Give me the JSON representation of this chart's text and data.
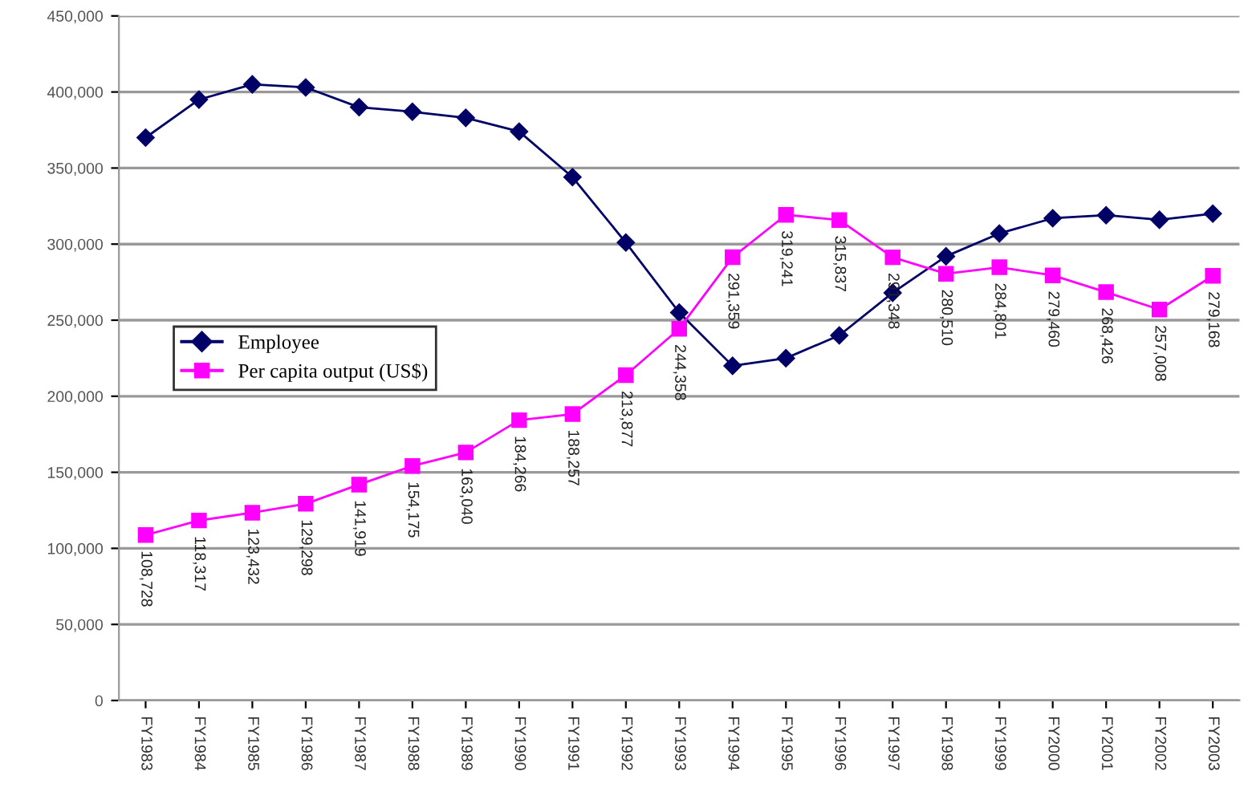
{
  "chart_data": {
    "type": "line",
    "categories": [
      "FY1983",
      "FY1984",
      "FY1985",
      "FY1986",
      "FY1987",
      "FY1988",
      "FY1989",
      "FY1990",
      "FY1991",
      "FY1992",
      "FY1993",
      "FY1994",
      "FY1995",
      "FY1996",
      "FY1997",
      "FY1998",
      "FY1999",
      "FY2000",
      "FY2001",
      "FY2002",
      "FY2003"
    ],
    "series": [
      {
        "name": "Employee",
        "color": "#000066",
        "marker": "diamond",
        "values": [
          370000,
          395000,
          405000,
          403000,
          390000,
          387000,
          383000,
          374000,
          344000,
          301000,
          255000,
          220000,
          225000,
          240000,
          268000,
          292000,
          307000,
          317000,
          319000,
          316000,
          320000
        ]
      },
      {
        "name": "Per capita output (US$)",
        "color": "#ff00ff",
        "marker": "square",
        "values": [
          108728,
          118317,
          123432,
          129298,
          141919,
          154175,
          163040,
          184266,
          188257,
          213877,
          244358,
          291359,
          319241,
          315837,
          291348,
          280510,
          284801,
          279460,
          268426,
          257008,
          279168
        ],
        "value_labels": [
          "108,728",
          "118,317",
          "123,432",
          "129,298",
          "141,919",
          "154,175",
          "163,040",
          "184,266",
          "188,257",
          "213,877",
          "244,358",
          "291,359",
          "319,241",
          "315,837",
          "291,348",
          "280,510",
          "284,801",
          "279,460",
          "268,426",
          "257,008",
          "279,168"
        ]
      }
    ],
    "ylim": [
      0,
      450000
    ],
    "yticks": [
      0,
      {
        "value": 50000,
        "label": "50,000"
      },
      {
        "value": 100000,
        "label": "100,000"
      },
      {
        "value": 150000,
        "label": "150,000"
      },
      {
        "value": 200000,
        "label": "200,000"
      },
      {
        "value": 250000,
        "label": "250,000"
      },
      {
        "value": 300000,
        "label": "300,000"
      },
      {
        "value": 350000,
        "label": "350,000"
      },
      {
        "value": 400000,
        "label": "400,000"
      },
      {
        "value": 450000,
        "label": "450,000"
      }
    ],
    "grid": "y",
    "legend": "center left"
  }
}
